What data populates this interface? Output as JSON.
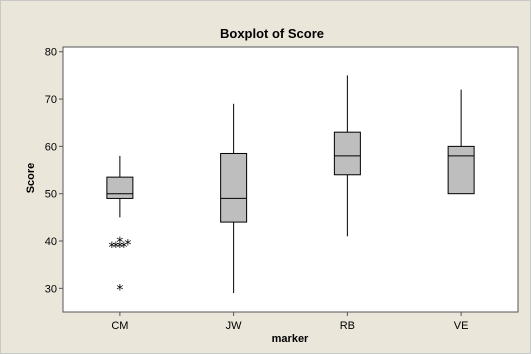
{
  "chart_data": {
    "type": "boxplot",
    "title": "Boxplot of Score",
    "xlabel": "marker",
    "ylabel": "Score",
    "ylim": [
      25,
      81
    ],
    "yticks": [
      30,
      40,
      50,
      60,
      70,
      80
    ],
    "categories": [
      "CM",
      "JW",
      "RB",
      "VE"
    ],
    "boxes": [
      {
        "category": "CM",
        "whisker_low": 45,
        "q1": 49,
        "median": 50,
        "q3": 53.5,
        "whisker_high": 58,
        "outliers": [
          39,
          39,
          39,
          39,
          39.5,
          40,
          30
        ]
      },
      {
        "category": "JW",
        "whisker_low": 29,
        "q1": 44,
        "median": 49,
        "q3": 58.5,
        "whisker_high": 69,
        "outliers": []
      },
      {
        "category": "RB",
        "whisker_low": 41,
        "q1": 54,
        "median": 58,
        "q3": 63,
        "whisker_high": 75,
        "outliers": []
      },
      {
        "category": "VE",
        "whisker_low": 50,
        "q1": 50,
        "median": 58,
        "q3": 60,
        "whisker_high": 72,
        "outliers": []
      }
    ],
    "outlier_marker": "*",
    "box_fill": "#bebebe",
    "plot_background": "#ffffff",
    "frame_background": "#eae6da",
    "grid": false,
    "legend": "none"
  }
}
